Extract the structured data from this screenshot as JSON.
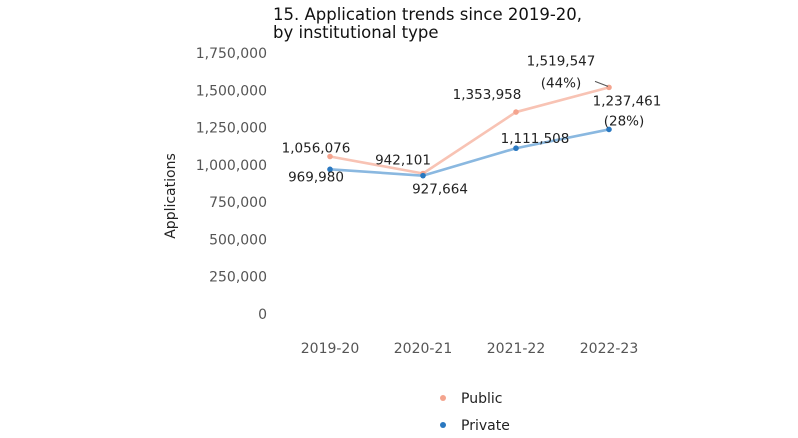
{
  "chart_data": {
    "type": "line",
    "title_line1": "15. Application trends since 2019-20,",
    "title_line2": "by institutional type",
    "xlabel": "",
    "ylabel": "Applications",
    "categories": [
      "2019-20",
      "2020-21",
      "2021-22",
      "2022-23"
    ],
    "ylim": [
      0,
      1750000
    ],
    "yticks": [
      0,
      250000,
      500000,
      750000,
      1000000,
      1250000,
      1500000,
      1750000
    ],
    "ytick_labels": [
      "0",
      "250,000",
      "500,000",
      "750,000",
      "1,000,000",
      "1,250,000",
      "1,500,000",
      "1,750,000"
    ],
    "grid": false,
    "legend_position": "bottom",
    "series": [
      {
        "name": "Public",
        "color": "#f4a48e",
        "line_color": "#f8c3b4",
        "values": [
          1056076,
          942101,
          1353958,
          1519547
        ],
        "labels": [
          "1,056,076",
          "942,101",
          "1,353,958",
          "1,519,547"
        ],
        "change_label": "(44%)"
      },
      {
        "name": "Private",
        "color": "#2a78c0",
        "line_color": "#8ab8e0",
        "values": [
          969980,
          927664,
          1111508,
          1237461
        ],
        "labels": [
          "969,980",
          "927,664",
          "1,111,508",
          "1,237,461"
        ],
        "change_label": "(28%)"
      }
    ]
  }
}
